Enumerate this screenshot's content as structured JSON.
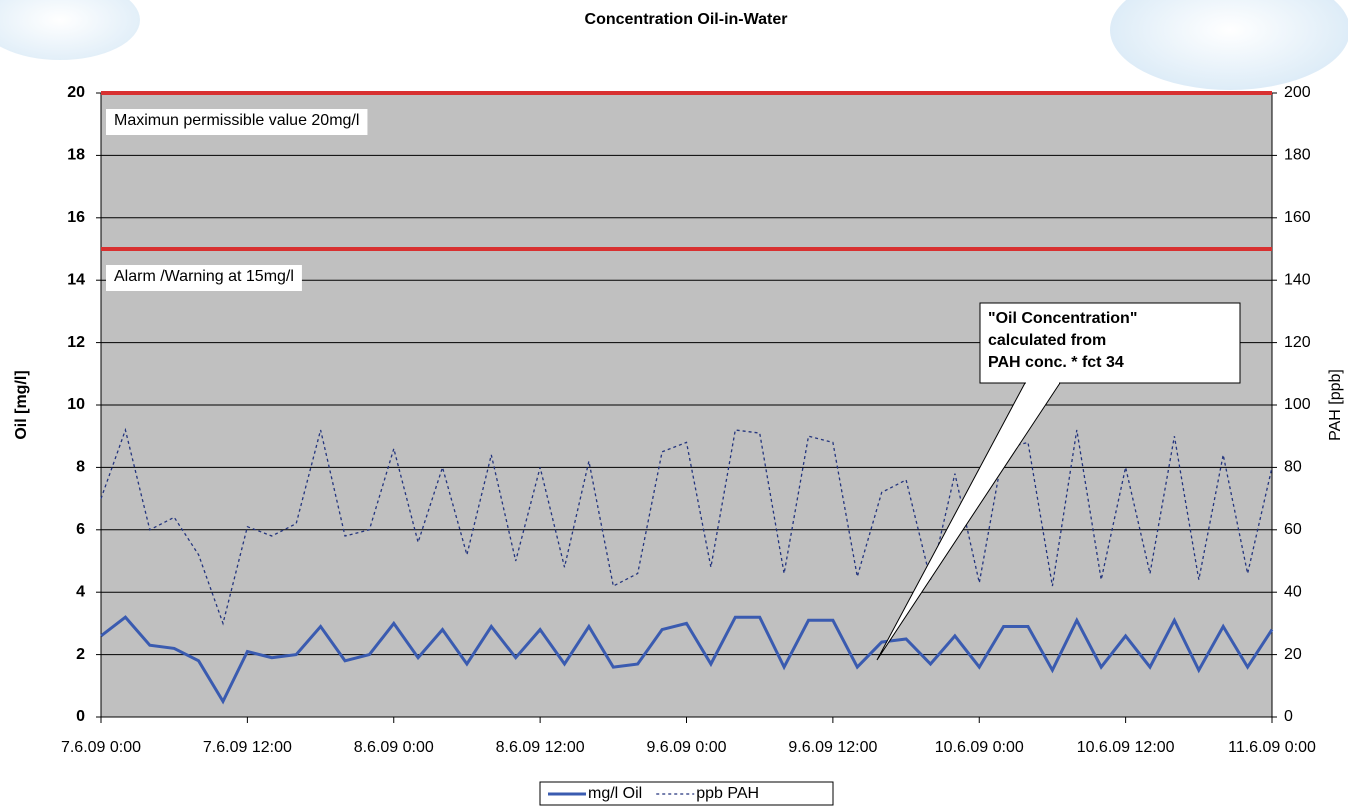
{
  "chart_data": {
    "type": "line",
    "title": "Concentration Oil-in-Water",
    "y_label": "Oil [mg/l]",
    "y2_label": "PAH [ppb]",
    "x": [
      "2009-06-07 00:00",
      "2009-06-07 02:00",
      "2009-06-07 04:00",
      "2009-06-07 06:00",
      "2009-06-07 08:00",
      "2009-06-07 10:00",
      "2009-06-07 12:00",
      "2009-06-07 14:00",
      "2009-06-07 16:00",
      "2009-06-07 18:00",
      "2009-06-07 20:00",
      "2009-06-07 22:00",
      "2009-06-08 00:00",
      "2009-06-08 02:00",
      "2009-06-08 04:00",
      "2009-06-08 06:00",
      "2009-06-08 08:00",
      "2009-06-08 10:00",
      "2009-06-08 12:00",
      "2009-06-08 14:00",
      "2009-06-08 16:00",
      "2009-06-08 18:00",
      "2009-06-08 20:00",
      "2009-06-08 22:00",
      "2009-06-09 00:00",
      "2009-06-09 02:00",
      "2009-06-09 04:00",
      "2009-06-09 06:00",
      "2009-06-09 08:00",
      "2009-06-09 10:00",
      "2009-06-09 12:00",
      "2009-06-09 14:00",
      "2009-06-09 16:00",
      "2009-06-09 18:00",
      "2009-06-09 20:00",
      "2009-06-09 22:00",
      "2009-06-10 00:00",
      "2009-06-10 02:00",
      "2009-06-10 04:00",
      "2009-06-10 06:00",
      "2009-06-10 08:00",
      "2009-06-10 10:00",
      "2009-06-10 12:00",
      "2009-06-10 14:00",
      "2009-06-10 16:00",
      "2009-06-10 18:00",
      "2009-06-10 20:00",
      "2009-06-10 22:00",
      "2009-06-11 00:00"
    ],
    "series": [
      {
        "name": "mg/l Oil",
        "color": "#3a5bb0",
        "dash": "solid",
        "values": [
          2.6,
          3.2,
          2.3,
          2.2,
          1.8,
          0.5,
          2.1,
          1.9,
          2.0,
          2.9,
          1.8,
          2.0,
          3.0,
          1.9,
          2.8,
          1.7,
          2.9,
          1.9,
          2.8,
          1.7,
          2.9,
          1.6,
          1.7,
          2.8,
          3.0,
          1.7,
          3.2,
          3.2,
          1.6,
          3.1,
          3.1,
          1.6,
          2.4,
          2.5,
          1.7,
          2.6,
          1.6,
          2.9,
          2.9,
          1.5,
          3.1,
          1.6,
          2.6,
          1.6,
          3.1,
          1.5,
          2.9,
          1.6,
          2.8
        ]
      },
      {
        "name": "ppb PAH",
        "color": "#24357e",
        "dash": "dotted",
        "axis": "y2",
        "values": [
          70,
          92,
          60,
          64,
          52,
          30,
          61,
          58,
          62,
          92,
          58,
          60,
          86,
          56,
          80,
          52,
          84,
          50,
          80,
          48,
          82,
          42,
          46,
          85,
          88,
          48,
          92,
          91,
          46,
          90,
          88,
          45,
          72,
          76,
          44,
          78,
          43,
          86,
          88,
          42,
          92,
          44,
          80,
          46,
          90,
          44,
          84,
          46,
          80
        ]
      }
    ],
    "xlim": [
      "2009-06-07 00:00",
      "2009-06-11 00:00"
    ],
    "xticks": [
      {
        "value": "2009-06-07 00:00",
        "label": "7.6.09 0:00"
      },
      {
        "value": "2009-06-07 12:00",
        "label": "7.6.09 12:00"
      },
      {
        "value": "2009-06-08 00:00",
        "label": "8.6.09 0:00"
      },
      {
        "value": "2009-06-08 12:00",
        "label": "8.6.09 12:00"
      },
      {
        "value": "2009-06-09 00:00",
        "label": "9.6.09 0:00"
      },
      {
        "value": "2009-06-09 12:00",
        "label": "9.6.09 12:00"
      },
      {
        "value": "2009-06-10 00:00",
        "label": "10.6.09 0:00"
      },
      {
        "value": "2009-06-10 12:00",
        "label": "10.6.09 12:00"
      },
      {
        "value": "2009-06-11 00:00",
        "label": "11.6.09 0:00"
      }
    ],
    "ylim": [
      0,
      20
    ],
    "yticks": [
      0,
      2,
      4,
      6,
      8,
      10,
      12,
      14,
      16,
      18,
      20
    ],
    "y2lim": [
      0,
      200
    ],
    "y2ticks": [
      0,
      20,
      40,
      60,
      80,
      100,
      120,
      140,
      160,
      180,
      200
    ],
    "grid": true,
    "reference_lines": [
      {
        "value": 20,
        "label": "Maximun permissible value 20mg/l",
        "color": "#d83030"
      },
      {
        "value": 15,
        "label": "Alarm /Warning at 15mg/l",
        "color": "#d83030"
      }
    ],
    "callout": [
      "\"Oil Concentration\"",
      "calculated from",
      "PAH conc. * fct 34"
    ],
    "legend": "bottom"
  }
}
